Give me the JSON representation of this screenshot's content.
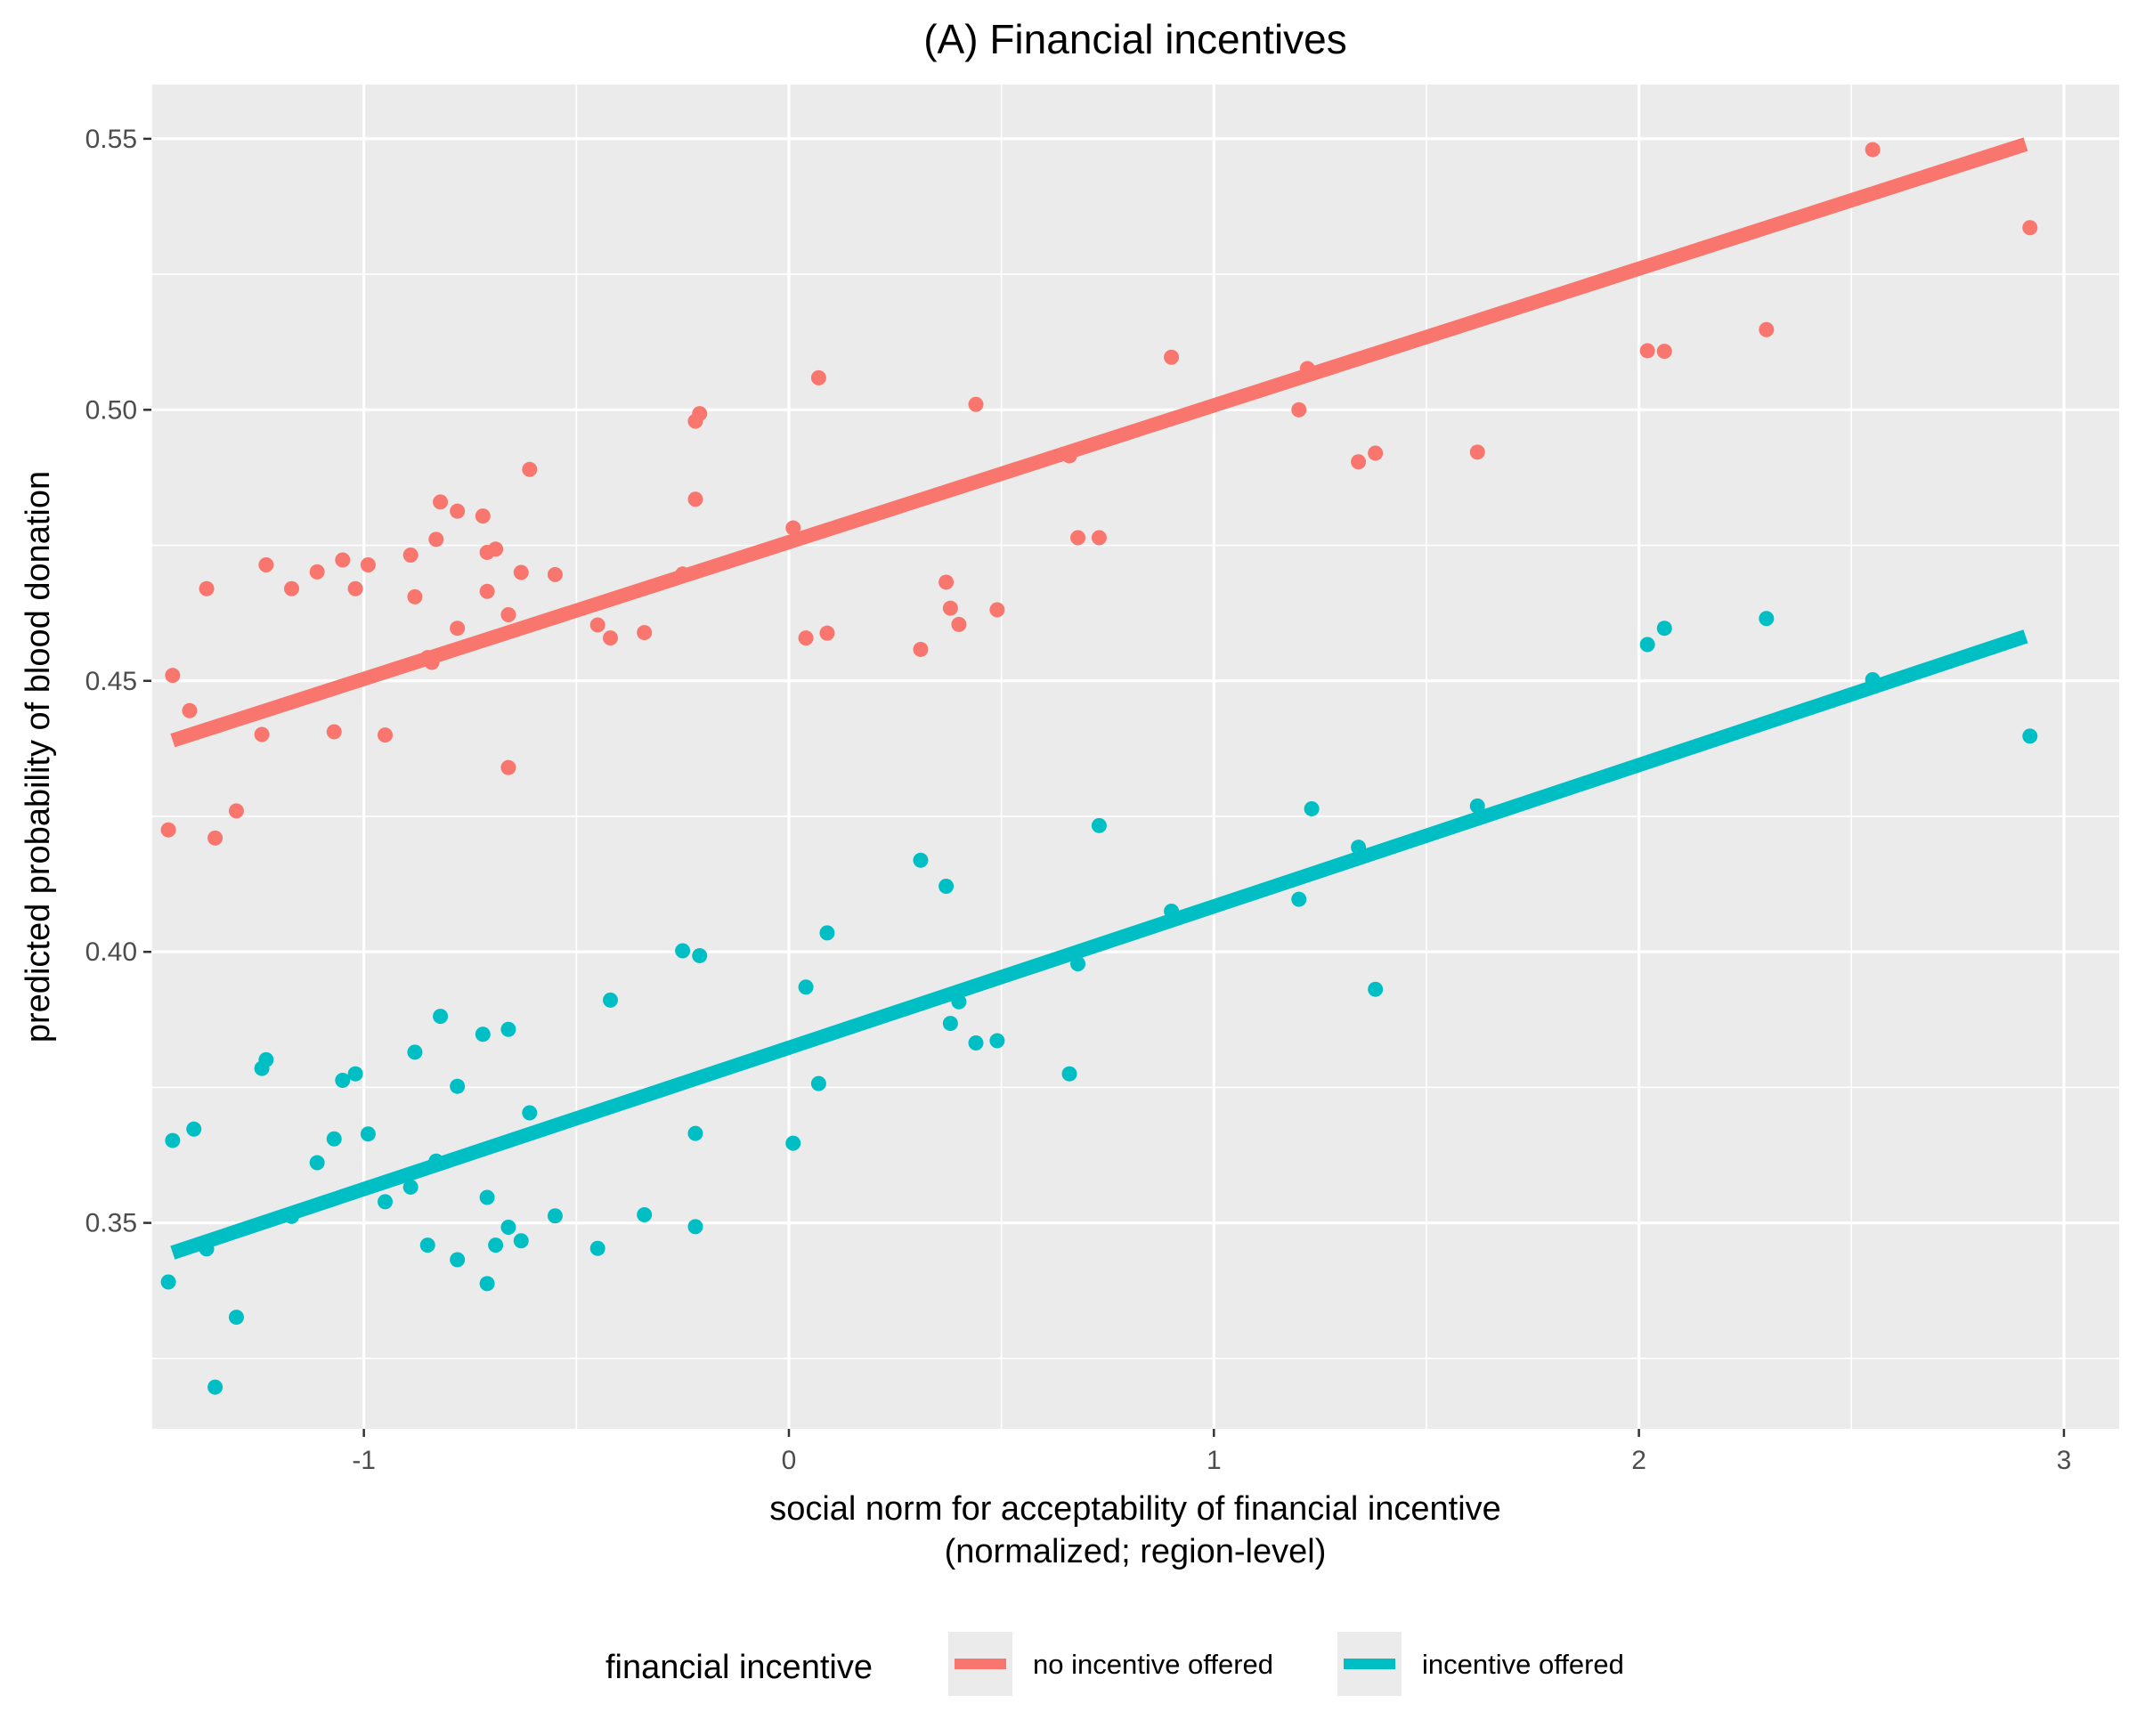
{
  "chart_data": {
    "type": "scatter",
    "title": "(A) Financial incentives",
    "xlabel_lines": [
      "social norm for acceptability of financial incentive",
      "(normalized; region-level)"
    ],
    "ylabel": "predicted probability of blood donation",
    "xlim": [
      -1.5,
      3.13
    ],
    "ylim": [
      0.312,
      0.56
    ],
    "x_ticks": [
      -1,
      0,
      1,
      2,
      3
    ],
    "x_tick_labels": [
      "-1",
      "0",
      "1",
      "2",
      "3"
    ],
    "y_ticks": [
      0.35,
      0.4,
      0.45,
      0.5,
      0.55
    ],
    "y_tick_labels": [
      "0.35",
      "0.40",
      "0.45",
      "0.50",
      "0.55"
    ],
    "grid": true,
    "legend": {
      "title": "financial incentive",
      "position": "bottom",
      "entries": [
        "no incentive offered",
        "incentive offered"
      ]
    },
    "series": [
      {
        "name": "no incentive offered",
        "color": "#F8766D",
        "fit": {
          "x": [
            -1.45,
            2.91
          ],
          "y": [
            0.439,
            0.549
          ]
        },
        "points": [
          [
            -1.46,
            0.4225
          ],
          [
            -1.45,
            0.451
          ],
          [
            -1.41,
            0.4445
          ],
          [
            -1.37,
            0.467
          ],
          [
            -1.35,
            0.421
          ],
          [
            -1.3,
            0.426
          ],
          [
            -1.24,
            0.4401
          ],
          [
            -1.23,
            0.4714
          ],
          [
            -1.17,
            0.467
          ],
          [
            -1.11,
            0.4701
          ],
          [
            -1.07,
            0.4406
          ],
          [
            -1.05,
            0.4723
          ],
          [
            -1.02,
            0.467
          ],
          [
            -0.99,
            0.4714
          ],
          [
            -0.95,
            0.44
          ],
          [
            -0.89,
            0.4732
          ],
          [
            -0.88,
            0.4655
          ],
          [
            -0.85,
            0.4543
          ],
          [
            -0.84,
            0.4534
          ],
          [
            -0.83,
            0.4761
          ],
          [
            -0.82,
            0.483
          ],
          [
            -0.78,
            0.4597
          ],
          [
            -0.78,
            0.4813
          ],
          [
            -0.72,
            0.4804
          ],
          [
            -0.71,
            0.4737
          ],
          [
            -0.71,
            0.4665
          ],
          [
            -0.69,
            0.4743
          ],
          [
            -0.66,
            0.4622
          ],
          [
            -0.66,
            0.434
          ],
          [
            -0.63,
            0.47
          ],
          [
            -0.61,
            0.489
          ],
          [
            -0.55,
            0.4696
          ],
          [
            -0.45,
            0.4603
          ],
          [
            -0.42,
            0.4579
          ],
          [
            -0.34,
            0.4589
          ],
          [
            -0.25,
            0.4697
          ],
          [
            -0.22,
            0.4835
          ],
          [
            -0.22,
            0.4979
          ],
          [
            -0.21,
            0.4993
          ],
          [
            0.01,
            0.4782
          ],
          [
            0.04,
            0.4579
          ],
          [
            0.07,
            0.5059
          ],
          [
            0.09,
            0.4588
          ],
          [
            0.31,
            0.4558
          ],
          [
            0.37,
            0.4682
          ],
          [
            0.38,
            0.4634
          ],
          [
            0.4,
            0.4604
          ],
          [
            0.44,
            0.501
          ],
          [
            0.49,
            0.4631
          ],
          [
            0.66,
            0.4915
          ],
          [
            0.68,
            0.4764
          ],
          [
            0.73,
            0.4764
          ],
          [
            0.9,
            0.5097
          ],
          [
            1.2,
            0.5
          ],
          [
            1.22,
            0.5076
          ],
          [
            1.34,
            0.4904
          ],
          [
            1.38,
            0.492
          ],
          [
            1.62,
            0.4922
          ],
          [
            2.02,
            0.5109
          ],
          [
            2.06,
            0.5108
          ],
          [
            2.3,
            0.5148
          ],
          [
            2.55,
            0.548
          ],
          [
            2.92,
            0.5336
          ]
        ]
      },
      {
        "name": "incentive offered",
        "color": "#00BFC4",
        "fit": {
          "x": [
            -1.45,
            2.91
          ],
          "y": [
            0.3445,
            0.4582
          ]
        },
        "points": [
          [
            -1.46,
            0.3391
          ],
          [
            -1.45,
            0.3652
          ],
          [
            -1.4,
            0.3673
          ],
          [
            -1.37,
            0.3452
          ],
          [
            -1.35,
            0.3197
          ],
          [
            -1.3,
            0.3326
          ],
          [
            -1.24,
            0.3785
          ],
          [
            -1.23,
            0.3801
          ],
          [
            -1.17,
            0.3512
          ],
          [
            -1.11,
            0.3611
          ],
          [
            -1.07,
            0.3655
          ],
          [
            -1.05,
            0.3763
          ],
          [
            -1.02,
            0.3775
          ],
          [
            -0.99,
            0.3664
          ],
          [
            -0.95,
            0.3539
          ],
          [
            -0.89,
            0.3566
          ],
          [
            -0.88,
            0.3815
          ],
          [
            -0.85,
            0.3459
          ],
          [
            -0.83,
            0.3614
          ],
          [
            -0.82,
            0.3881
          ],
          [
            -0.78,
            0.3432
          ],
          [
            -0.78,
            0.3752
          ],
          [
            -0.72,
            0.3848
          ],
          [
            -0.71,
            0.3547
          ],
          [
            -0.71,
            0.3388
          ],
          [
            -0.69,
            0.3459
          ],
          [
            -0.66,
            0.3857
          ],
          [
            -0.66,
            0.3492
          ],
          [
            -0.63,
            0.3467
          ],
          [
            -0.61,
            0.3703
          ],
          [
            -0.55,
            0.3513
          ],
          [
            -0.45,
            0.3453
          ],
          [
            -0.42,
            0.3911
          ],
          [
            -0.34,
            0.3515
          ],
          [
            -0.25,
            0.4002
          ],
          [
            -0.22,
            0.3665
          ],
          [
            -0.22,
            0.3493
          ],
          [
            -0.21,
            0.3993
          ],
          [
            0.01,
            0.3647
          ],
          [
            0.04,
            0.3935
          ],
          [
            0.07,
            0.3757
          ],
          [
            0.09,
            0.4035
          ],
          [
            0.31,
            0.4169
          ],
          [
            0.37,
            0.4121
          ],
          [
            0.38,
            0.3868
          ],
          [
            0.4,
            0.3908
          ],
          [
            0.44,
            0.3832
          ],
          [
            0.49,
            0.3836
          ],
          [
            0.66,
            0.3775
          ],
          [
            0.68,
            0.3978
          ],
          [
            0.73,
            0.4233
          ],
          [
            0.9,
            0.4075
          ],
          [
            1.2,
            0.4097
          ],
          [
            1.23,
            0.4264
          ],
          [
            1.34,
            0.4193
          ],
          [
            1.38,
            0.3931
          ],
          [
            1.62,
            0.4269
          ],
          [
            2.02,
            0.4567
          ],
          [
            2.06,
            0.4597
          ],
          [
            2.3,
            0.4615
          ],
          [
            2.55,
            0.4502
          ],
          [
            2.92,
            0.4398
          ]
        ]
      }
    ]
  }
}
